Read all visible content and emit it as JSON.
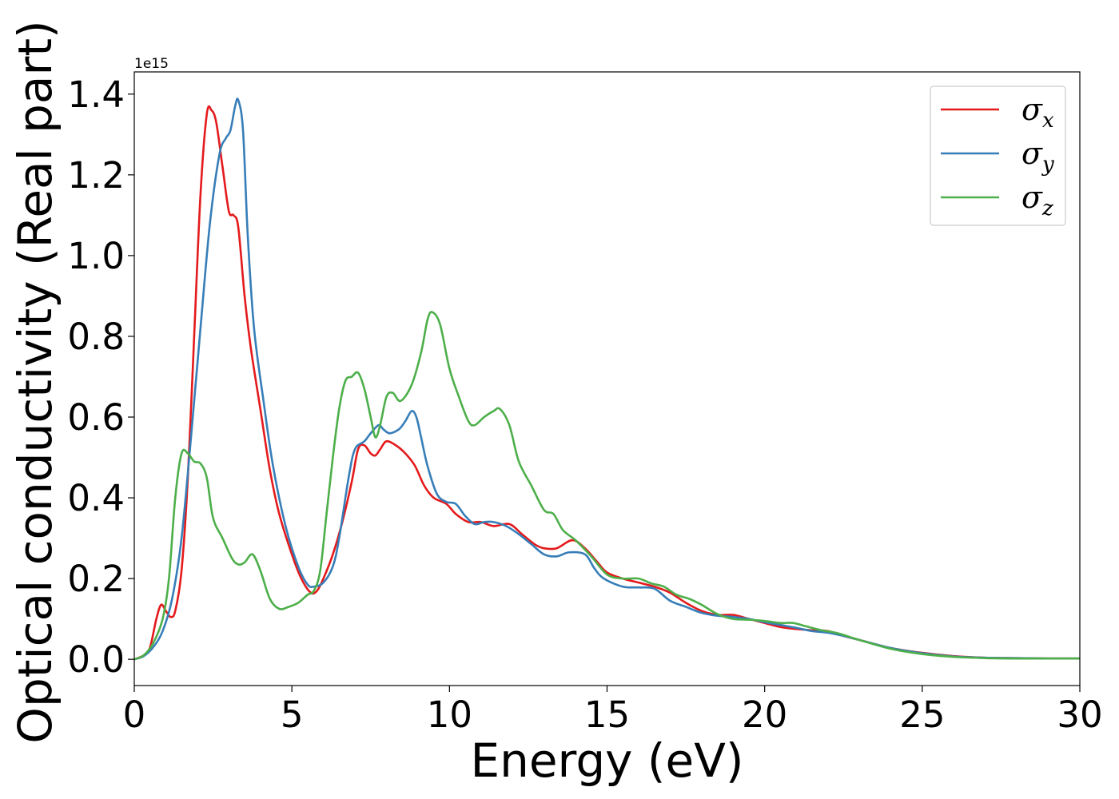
{
  "chart_data": {
    "type": "line",
    "xlabel": "Energy (eV)",
    "ylabel": "Optical conductivity (Real part)",
    "y_offset_label": "1e15",
    "xlim": [
      0,
      30
    ],
    "ylim": [
      -0.065,
      1.455
    ],
    "xticks": [
      0,
      5,
      10,
      15,
      20,
      25,
      30
    ],
    "xtick_labels": [
      "0",
      "5",
      "10",
      "15",
      "20",
      "25",
      "30"
    ],
    "yticks": [
      0.0,
      0.2,
      0.4,
      0.6,
      0.8,
      1.0,
      1.2,
      1.4
    ],
    "ytick_labels": [
      "0.0",
      "0.2",
      "0.4",
      "0.6",
      "0.8",
      "1.0",
      "1.2",
      "1.4"
    ],
    "grid": false,
    "legend_position": "top-right",
    "series": [
      {
        "name": "σ",
        "subscript": "x",
        "color": "#e41a1c",
        "points": [
          [
            0,
            0.0
          ],
          [
            0.3,
            0.01
          ],
          [
            0.5,
            0.03
          ],
          [
            0.7,
            0.1
          ],
          [
            0.85,
            0.135
          ],
          [
            1.0,
            0.12
          ],
          [
            1.15,
            0.105
          ],
          [
            1.3,
            0.12
          ],
          [
            1.5,
            0.22
          ],
          [
            1.7,
            0.45
          ],
          [
            1.9,
            0.8
          ],
          [
            2.1,
            1.15
          ],
          [
            2.3,
            1.35
          ],
          [
            2.45,
            1.36
          ],
          [
            2.6,
            1.33
          ],
          [
            2.8,
            1.22
          ],
          [
            3.0,
            1.11
          ],
          [
            3.15,
            1.1
          ],
          [
            3.3,
            1.07
          ],
          [
            3.5,
            0.9
          ],
          [
            3.7,
            0.77
          ],
          [
            4.0,
            0.62
          ],
          [
            4.3,
            0.47
          ],
          [
            4.6,
            0.36
          ],
          [
            5.0,
            0.26
          ],
          [
            5.3,
            0.2
          ],
          [
            5.6,
            0.165
          ],
          [
            5.8,
            0.17
          ],
          [
            6.0,
            0.2
          ],
          [
            6.3,
            0.26
          ],
          [
            6.6,
            0.34
          ],
          [
            6.9,
            0.44
          ],
          [
            7.1,
            0.52
          ],
          [
            7.3,
            0.53
          ],
          [
            7.5,
            0.51
          ],
          [
            7.65,
            0.505
          ],
          [
            7.8,
            0.52
          ],
          [
            8.0,
            0.54
          ],
          [
            8.3,
            0.53
          ],
          [
            8.6,
            0.51
          ],
          [
            8.9,
            0.48
          ],
          [
            9.2,
            0.43
          ],
          [
            9.5,
            0.4
          ],
          [
            9.9,
            0.385
          ],
          [
            10.2,
            0.36
          ],
          [
            10.6,
            0.34
          ],
          [
            11.0,
            0.34
          ],
          [
            11.4,
            0.33
          ],
          [
            11.9,
            0.335
          ],
          [
            12.3,
            0.31
          ],
          [
            12.7,
            0.285
          ],
          [
            13.0,
            0.275
          ],
          [
            13.4,
            0.275
          ],
          [
            13.9,
            0.295
          ],
          [
            14.3,
            0.275
          ],
          [
            14.7,
            0.24
          ],
          [
            15.0,
            0.215
          ],
          [
            15.5,
            0.2
          ],
          [
            16.0,
            0.19
          ],
          [
            16.5,
            0.18
          ],
          [
            17.0,
            0.165
          ],
          [
            17.5,
            0.14
          ],
          [
            18.0,
            0.12
          ],
          [
            18.5,
            0.11
          ],
          [
            19.0,
            0.11
          ],
          [
            19.5,
            0.1
          ],
          [
            20.0,
            0.09
          ],
          [
            20.5,
            0.08
          ],
          [
            21.0,
            0.075
          ],
          [
            21.5,
            0.072
          ],
          [
            22.0,
            0.07
          ],
          [
            22.5,
            0.058
          ],
          [
            23.0,
            0.048
          ],
          [
            24.0,
            0.028
          ],
          [
            25.0,
            0.016
          ],
          [
            26.0,
            0.008
          ],
          [
            27.0,
            0.004
          ],
          [
            28.0,
            0.003
          ],
          [
            29.0,
            0.002
          ],
          [
            30.0,
            0.002
          ]
        ]
      },
      {
        "name": "σ",
        "subscript": "y",
        "color": "#377eb8",
        "points": [
          [
            0,
            0.0
          ],
          [
            0.3,
            0.008
          ],
          [
            0.6,
            0.03
          ],
          [
            0.9,
            0.07
          ],
          [
            1.2,
            0.15
          ],
          [
            1.5,
            0.3
          ],
          [
            1.8,
            0.55
          ],
          [
            2.1,
            0.82
          ],
          [
            2.4,
            1.08
          ],
          [
            2.7,
            1.25
          ],
          [
            2.9,
            1.29
          ],
          [
            3.05,
            1.31
          ],
          [
            3.2,
            1.37
          ],
          [
            3.3,
            1.385
          ],
          [
            3.45,
            1.31
          ],
          [
            3.6,
            1.05
          ],
          [
            3.8,
            0.82
          ],
          [
            4.1,
            0.64
          ],
          [
            4.4,
            0.48
          ],
          [
            4.8,
            0.33
          ],
          [
            5.2,
            0.23
          ],
          [
            5.5,
            0.185
          ],
          [
            5.7,
            0.18
          ],
          [
            6.0,
            0.19
          ],
          [
            6.3,
            0.23
          ],
          [
            6.5,
            0.3
          ],
          [
            6.8,
            0.45
          ],
          [
            7.0,
            0.52
          ],
          [
            7.3,
            0.54
          ],
          [
            7.5,
            0.56
          ],
          [
            7.75,
            0.58
          ],
          [
            7.9,
            0.57
          ],
          [
            8.1,
            0.56
          ],
          [
            8.4,
            0.57
          ],
          [
            8.6,
            0.59
          ],
          [
            8.8,
            0.615
          ],
          [
            8.95,
            0.6
          ],
          [
            9.1,
            0.55
          ],
          [
            9.3,
            0.48
          ],
          [
            9.6,
            0.41
          ],
          [
            9.9,
            0.39
          ],
          [
            10.2,
            0.385
          ],
          [
            10.5,
            0.355
          ],
          [
            10.8,
            0.335
          ],
          [
            11.1,
            0.34
          ],
          [
            11.4,
            0.34
          ],
          [
            11.8,
            0.33
          ],
          [
            12.2,
            0.31
          ],
          [
            12.6,
            0.285
          ],
          [
            13.0,
            0.26
          ],
          [
            13.4,
            0.255
          ],
          [
            13.8,
            0.265
          ],
          [
            14.3,
            0.26
          ],
          [
            14.6,
            0.225
          ],
          [
            14.9,
            0.2
          ],
          [
            15.5,
            0.18
          ],
          [
            16.0,
            0.178
          ],
          [
            16.5,
            0.175
          ],
          [
            17.0,
            0.145
          ],
          [
            17.5,
            0.13
          ],
          [
            18.0,
            0.115
          ],
          [
            18.5,
            0.108
          ],
          [
            19.0,
            0.105
          ],
          [
            19.5,
            0.1
          ],
          [
            20.0,
            0.092
          ],
          [
            20.5,
            0.085
          ],
          [
            21.0,
            0.078
          ],
          [
            21.5,
            0.07
          ],
          [
            22.0,
            0.066
          ],
          [
            22.5,
            0.058
          ],
          [
            23.0,
            0.048
          ],
          [
            24.0,
            0.028
          ],
          [
            25.0,
            0.015
          ],
          [
            26.0,
            0.007
          ],
          [
            27.0,
            0.004
          ],
          [
            28.0,
            0.003
          ],
          [
            29.0,
            0.002
          ],
          [
            30.0,
            0.002
          ]
        ]
      },
      {
        "name": "σ",
        "subscript": "z",
        "color": "#4daf4a",
        "points": [
          [
            0,
            0.0
          ],
          [
            0.3,
            0.01
          ],
          [
            0.6,
            0.04
          ],
          [
            0.9,
            0.1
          ],
          [
            1.1,
            0.2
          ],
          [
            1.3,
            0.4
          ],
          [
            1.5,
            0.51
          ],
          [
            1.7,
            0.51
          ],
          [
            1.9,
            0.49
          ],
          [
            2.1,
            0.485
          ],
          [
            2.3,
            0.45
          ],
          [
            2.5,
            0.35
          ],
          [
            2.8,
            0.3
          ],
          [
            3.1,
            0.25
          ],
          [
            3.3,
            0.235
          ],
          [
            3.5,
            0.24
          ],
          [
            3.75,
            0.26
          ],
          [
            4.0,
            0.22
          ],
          [
            4.3,
            0.15
          ],
          [
            4.6,
            0.125
          ],
          [
            4.9,
            0.13
          ],
          [
            5.2,
            0.14
          ],
          [
            5.5,
            0.16
          ],
          [
            5.7,
            0.17
          ],
          [
            5.9,
            0.22
          ],
          [
            6.1,
            0.36
          ],
          [
            6.3,
            0.5
          ],
          [
            6.5,
            0.62
          ],
          [
            6.7,
            0.69
          ],
          [
            6.9,
            0.7
          ],
          [
            7.1,
            0.71
          ],
          [
            7.3,
            0.67
          ],
          [
            7.5,
            0.6
          ],
          [
            7.65,
            0.55
          ],
          [
            7.8,
            0.58
          ],
          [
            8.0,
            0.65
          ],
          [
            8.2,
            0.66
          ],
          [
            8.45,
            0.64
          ],
          [
            8.8,
            0.68
          ],
          [
            9.1,
            0.76
          ],
          [
            9.3,
            0.84
          ],
          [
            9.45,
            0.86
          ],
          [
            9.7,
            0.83
          ],
          [
            10.0,
            0.72
          ],
          [
            10.3,
            0.65
          ],
          [
            10.6,
            0.59
          ],
          [
            10.8,
            0.58
          ],
          [
            11.1,
            0.6
          ],
          [
            11.4,
            0.615
          ],
          [
            11.6,
            0.62
          ],
          [
            11.9,
            0.58
          ],
          [
            12.2,
            0.49
          ],
          [
            12.6,
            0.43
          ],
          [
            13.0,
            0.37
          ],
          [
            13.3,
            0.36
          ],
          [
            13.6,
            0.32
          ],
          [
            14.0,
            0.295
          ],
          [
            14.5,
            0.255
          ],
          [
            15.0,
            0.21
          ],
          [
            15.5,
            0.2
          ],
          [
            16.0,
            0.2
          ],
          [
            16.4,
            0.188
          ],
          [
            16.8,
            0.18
          ],
          [
            17.2,
            0.16
          ],
          [
            17.6,
            0.15
          ],
          [
            18.0,
            0.135
          ],
          [
            18.5,
            0.112
          ],
          [
            19.0,
            0.1
          ],
          [
            19.5,
            0.098
          ],
          [
            20.0,
            0.095
          ],
          [
            20.5,
            0.09
          ],
          [
            20.9,
            0.09
          ],
          [
            21.3,
            0.082
          ],
          [
            21.8,
            0.072
          ],
          [
            22.3,
            0.065
          ],
          [
            23.0,
            0.048
          ],
          [
            24.0,
            0.026
          ],
          [
            25.0,
            0.013
          ],
          [
            26.0,
            0.006
          ],
          [
            27.0,
            0.003
          ],
          [
            28.0,
            0.002
          ],
          [
            29.0,
            0.002
          ],
          [
            30.0,
            0.002
          ]
        ]
      }
    ]
  }
}
